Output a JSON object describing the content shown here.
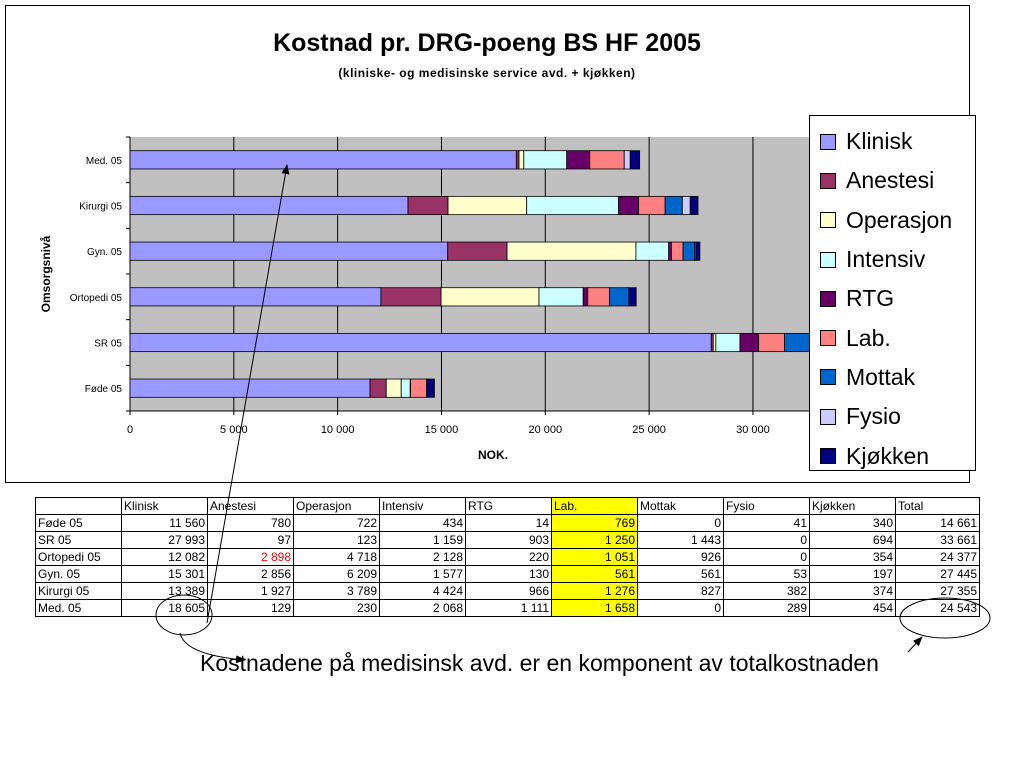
{
  "chart_data": {
    "type": "bar",
    "orientation": "horizontal",
    "stacked": true,
    "title": "Kostnad pr. DRG-poeng BS HF 2005",
    "subtitle": "(kliniske- og medisinske service avd. + kjøkken)",
    "xlabel": "NOK.",
    "ylabel": "Omsorgsnivå",
    "xlim": [
      0,
      34000
    ],
    "xticks": [
      0,
      5000,
      10000,
      15000,
      20000,
      25000,
      30000
    ],
    "xtick_labels": [
      "0",
      "5 000",
      "10 000",
      "15 000",
      "20 000",
      "25 000",
      "30 000"
    ],
    "categories": [
      "Med. 05",
      "Kirurgi 05",
      "Gyn. 05",
      "Ortopedi 05",
      "SR 05",
      "Føde 05"
    ],
    "grid": true,
    "legend_position": "right",
    "series": [
      {
        "name": "Klinisk",
        "color": "#9999ff",
        "values": [
          18605,
          13389,
          15301,
          12082,
          27993,
          11560
        ]
      },
      {
        "name": "Anestesi",
        "color": "#993366",
        "values": [
          129,
          1927,
          2856,
          2898,
          97,
          780
        ]
      },
      {
        "name": "Operasjon",
        "color": "#ffffcc",
        "values": [
          230,
          3789,
          6209,
          4718,
          123,
          722
        ]
      },
      {
        "name": "Intensiv",
        "color": "#ccffff",
        "values": [
          2068,
          4424,
          1577,
          2128,
          1159,
          434
        ]
      },
      {
        "name": "RTG",
        "color": "#660066",
        "values": [
          1111,
          966,
          130,
          220,
          903,
          14
        ]
      },
      {
        "name": "Lab.",
        "color": "#ff8080",
        "values": [
          1658,
          1276,
          561,
          1051,
          1250,
          769
        ]
      },
      {
        "name": "Mottak",
        "color": "#0066cc",
        "values": [
          0,
          827,
          561,
          926,
          1443,
          0
        ]
      },
      {
        "name": "Fysio",
        "color": "#ccccff",
        "values": [
          289,
          382,
          53,
          0,
          0,
          41
        ]
      },
      {
        "name": "Kjøkken",
        "color": "#000080",
        "values": [
          454,
          374,
          197,
          354,
          694,
          340
        ]
      }
    ]
  },
  "table": {
    "headers": [
      "",
      "Klinisk",
      "Anestesi",
      "Operasjon",
      "Intensiv",
      "RTG",
      "Lab.",
      "Mottak",
      "Fysio",
      "Kjøkken",
      "Total"
    ],
    "rows": [
      [
        "Føde 05",
        "11 560",
        "780",
        "722",
        "434",
        "14",
        "769",
        "0",
        "41",
        "340",
        "14 661"
      ],
      [
        "SR 05",
        "27 993",
        "97",
        "123",
        "1 159",
        "903",
        "1 250",
        "1 443",
        "0",
        "694",
        "33 661"
      ],
      [
        "Ortopedi 05",
        "12 082",
        "2 898",
        "4 718",
        "2 128",
        "220",
        "1 051",
        "926",
        "0",
        "354",
        "24 377"
      ],
      [
        "Gyn. 05",
        "15 301",
        "2 856",
        "6 209",
        "1 577",
        "130",
        "561",
        "561",
        "53",
        "197",
        "27 445"
      ],
      [
        "Kirurgi 05",
        "13 389",
        "1 927",
        "3 789",
        "4 424",
        "966",
        "1 276",
        "827",
        "382",
        "374",
        "27 355"
      ],
      [
        "Med. 05",
        "18 605",
        "129",
        "230",
        "2 068",
        "1 111",
        "1 658",
        "0",
        "289",
        "454",
        "24 543"
      ]
    ],
    "highlight_column_color": "#ffff00",
    "red_text_color": "#ff0000"
  },
  "caption": "Kostnadene på medisinsk avd. er en komponent av totalkostnaden",
  "colors": {
    "plot_background": "#c0c0c0",
    "highlight": "#ffff00"
  }
}
